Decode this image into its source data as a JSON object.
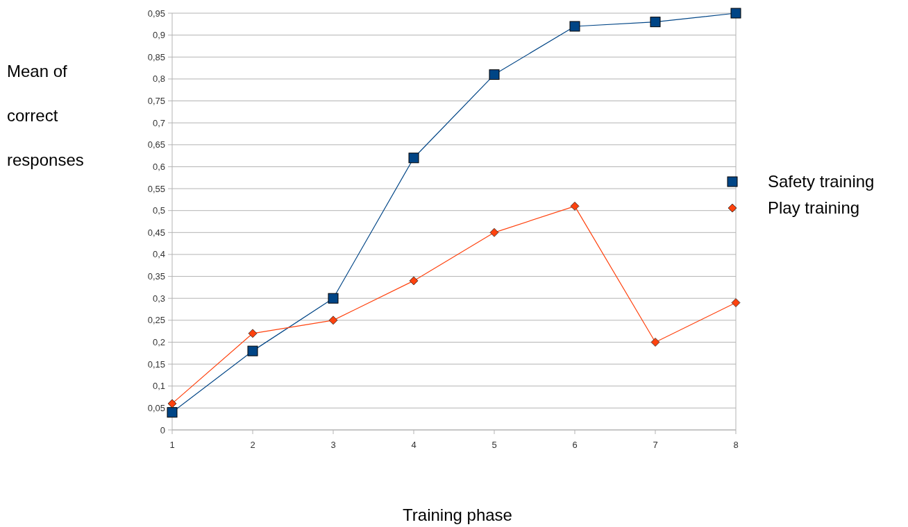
{
  "chart_data": {
    "type": "line",
    "xlabel": "Training phase",
    "ylabel": "Mean of correct responses",
    "x": [
      1,
      2,
      3,
      4,
      5,
      6,
      7,
      8
    ],
    "xlim": [
      1,
      8
    ],
    "xticks": [
      1,
      2,
      3,
      4,
      5,
      6,
      7,
      8
    ],
    "ylim": [
      0,
      0.95
    ],
    "yticks": [
      0,
      {
        "value": 0.05,
        "label": "0,05"
      },
      {
        "value": 0.1,
        "label": "0,1"
      },
      {
        "value": 0.15,
        "label": "0,15"
      },
      {
        "value": 0.2,
        "label": "0,2"
      },
      {
        "value": 0.25,
        "label": "0,25"
      },
      {
        "value": 0.3,
        "label": "0,3"
      },
      {
        "value": 0.35,
        "label": "0,35"
      },
      {
        "value": 0.4,
        "label": "0,4"
      },
      {
        "value": 0.45,
        "label": "0,45"
      },
      {
        "value": 0.5,
        "label": "0,5"
      },
      {
        "value": 0.55,
        "label": "0,55"
      },
      {
        "value": 0.6,
        "label": "0,6"
      },
      {
        "value": 0.65,
        "label": "0,65"
      },
      {
        "value": 0.7,
        "label": "0,7"
      },
      {
        "value": 0.75,
        "label": "0,75"
      },
      {
        "value": 0.8,
        "label": "0,8"
      },
      {
        "value": 0.85,
        "label": "0,85"
      },
      {
        "value": 0.9,
        "label": "0,9"
      },
      {
        "value": 0.95,
        "label": "0,95"
      }
    ],
    "grid": "y",
    "legend": "right",
    "series": [
      {
        "name": "Safety training",
        "color": "#004586",
        "marker": "square",
        "values": [
          0.04,
          0.18,
          0.3,
          0.62,
          0.81,
          0.92,
          0.93,
          0.95
        ]
      },
      {
        "name": "Play training",
        "color": "#ff420e",
        "marker": "diamond",
        "values": [
          0.06,
          0.22,
          0.25,
          0.34,
          0.45,
          0.51,
          0.2,
          0.29
        ]
      }
    ]
  }
}
